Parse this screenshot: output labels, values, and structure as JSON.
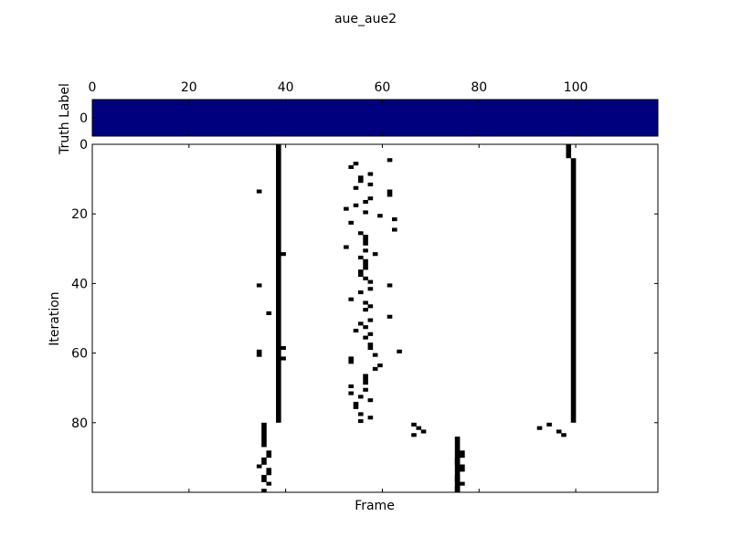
{
  "chart_data": {
    "type": "heatmap",
    "title": "aue_aue2",
    "top_panel": {
      "ylabel": "Truth Label",
      "ytick_labels": [
        "0"
      ],
      "xtick_labels": [
        "0",
        "20",
        "40",
        "60",
        "80",
        "100"
      ],
      "xticks": [
        0,
        20,
        40,
        60,
        80,
        100
      ],
      "xlim": [
        0,
        117
      ],
      "truth_values": "all frames = 0",
      "fill_color": "#00007f"
    },
    "main_panel": {
      "xlabel": "Frame",
      "ylabel": "Iteration",
      "yticks": [
        0,
        20,
        40,
        60,
        80
      ],
      "ytick_labels": [
        "0",
        "20",
        "40",
        "60",
        "80"
      ],
      "ylim": [
        0,
        100
      ],
      "xlim": [
        0,
        117
      ],
      "mark_color": "#000000",
      "background_color": "#ffffff",
      "cells_desc": "black cells indicate frames flagged at each iteration",
      "vertical_bands": [
        {
          "x": 38,
          "y_start": 0,
          "y_end": 80
        },
        {
          "x": 99,
          "y_start": 4,
          "y_end": 80
        },
        {
          "x": 98,
          "y_start": 0,
          "y_end": 4
        },
        {
          "x": 35,
          "y_start": 80,
          "y_end": 87
        },
        {
          "x": 75,
          "y_start": 84,
          "y_end": 100
        }
      ],
      "points": [
        [
          34,
          13
        ],
        [
          36,
          48
        ],
        [
          34,
          40
        ],
        [
          34,
          59
        ],
        [
          34,
          60
        ],
        [
          39,
          31
        ],
        [
          39,
          58
        ],
        [
          39,
          61
        ],
        [
          61,
          4
        ],
        [
          53,
          6
        ],
        [
          54,
          5
        ],
        [
          57,
          8
        ],
        [
          55,
          9
        ],
        [
          55,
          10
        ],
        [
          57,
          11
        ],
        [
          54,
          12
        ],
        [
          61,
          13
        ],
        [
          61,
          14
        ],
        [
          56,
          16
        ],
        [
          57,
          15
        ],
        [
          59,
          20
        ],
        [
          54,
          17
        ],
        [
          52,
          18
        ],
        [
          56,
          19
        ],
        [
          62,
          21
        ],
        [
          53,
          22
        ],
        [
          62,
          24
        ],
        [
          55,
          25
        ],
        [
          56,
          26
        ],
        [
          56,
          27
        ],
        [
          56,
          28
        ],
        [
          52,
          29
        ],
        [
          56,
          30
        ],
        [
          58,
          31
        ],
        [
          55,
          32
        ],
        [
          56,
          33
        ],
        [
          56,
          34
        ],
        [
          56,
          35
        ],
        [
          55,
          36
        ],
        [
          55,
          37
        ],
        [
          56,
          38
        ],
        [
          57,
          39
        ],
        [
          57,
          41
        ],
        [
          55,
          42
        ],
        [
          61,
          40
        ],
        [
          53,
          44
        ],
        [
          56,
          45
        ],
        [
          57,
          46
        ],
        [
          56,
          47
        ],
        [
          61,
          49
        ],
        [
          57,
          50
        ],
        [
          55,
          51
        ],
        [
          56,
          52
        ],
        [
          54,
          53
        ],
        [
          57,
          54
        ],
        [
          56,
          55
        ],
        [
          57,
          57
        ],
        [
          57,
          58
        ],
        [
          63,
          59
        ],
        [
          58,
          60
        ],
        [
          53,
          61
        ],
        [
          53,
          62
        ],
        [
          59,
          63
        ],
        [
          58,
          64
        ],
        [
          56,
          66
        ],
        [
          56,
          67
        ],
        [
          56,
          68
        ],
        [
          53,
          69
        ],
        [
          56,
          70
        ],
        [
          53,
          71
        ],
        [
          55,
          72
        ],
        [
          57,
          73
        ],
        [
          54,
          74
        ],
        [
          54,
          75
        ],
        [
          55,
          77
        ],
        [
          57,
          78
        ],
        [
          55,
          79
        ],
        [
          66,
          80
        ],
        [
          67,
          81
        ],
        [
          68,
          82
        ],
        [
          66,
          83
        ],
        [
          92,
          81
        ],
        [
          94,
          80
        ],
        [
          96,
          82
        ],
        [
          97,
          83
        ],
        [
          36,
          88
        ],
        [
          36,
          89
        ],
        [
          35,
          90
        ],
        [
          35,
          91
        ],
        [
          34,
          92
        ],
        [
          36,
          93
        ],
        [
          36,
          94
        ],
        [
          35,
          95
        ],
        [
          35,
          96
        ],
        [
          36,
          97
        ],
        [
          35,
          99
        ],
        [
          76,
          88
        ],
        [
          76,
          89
        ],
        [
          75,
          90
        ],
        [
          75,
          91
        ],
        [
          76,
          92
        ],
        [
          76,
          93
        ],
        [
          75,
          95
        ],
        [
          75,
          96
        ],
        [
          76,
          97
        ],
        [
          75,
          98
        ],
        [
          75,
          99
        ]
      ]
    }
  }
}
